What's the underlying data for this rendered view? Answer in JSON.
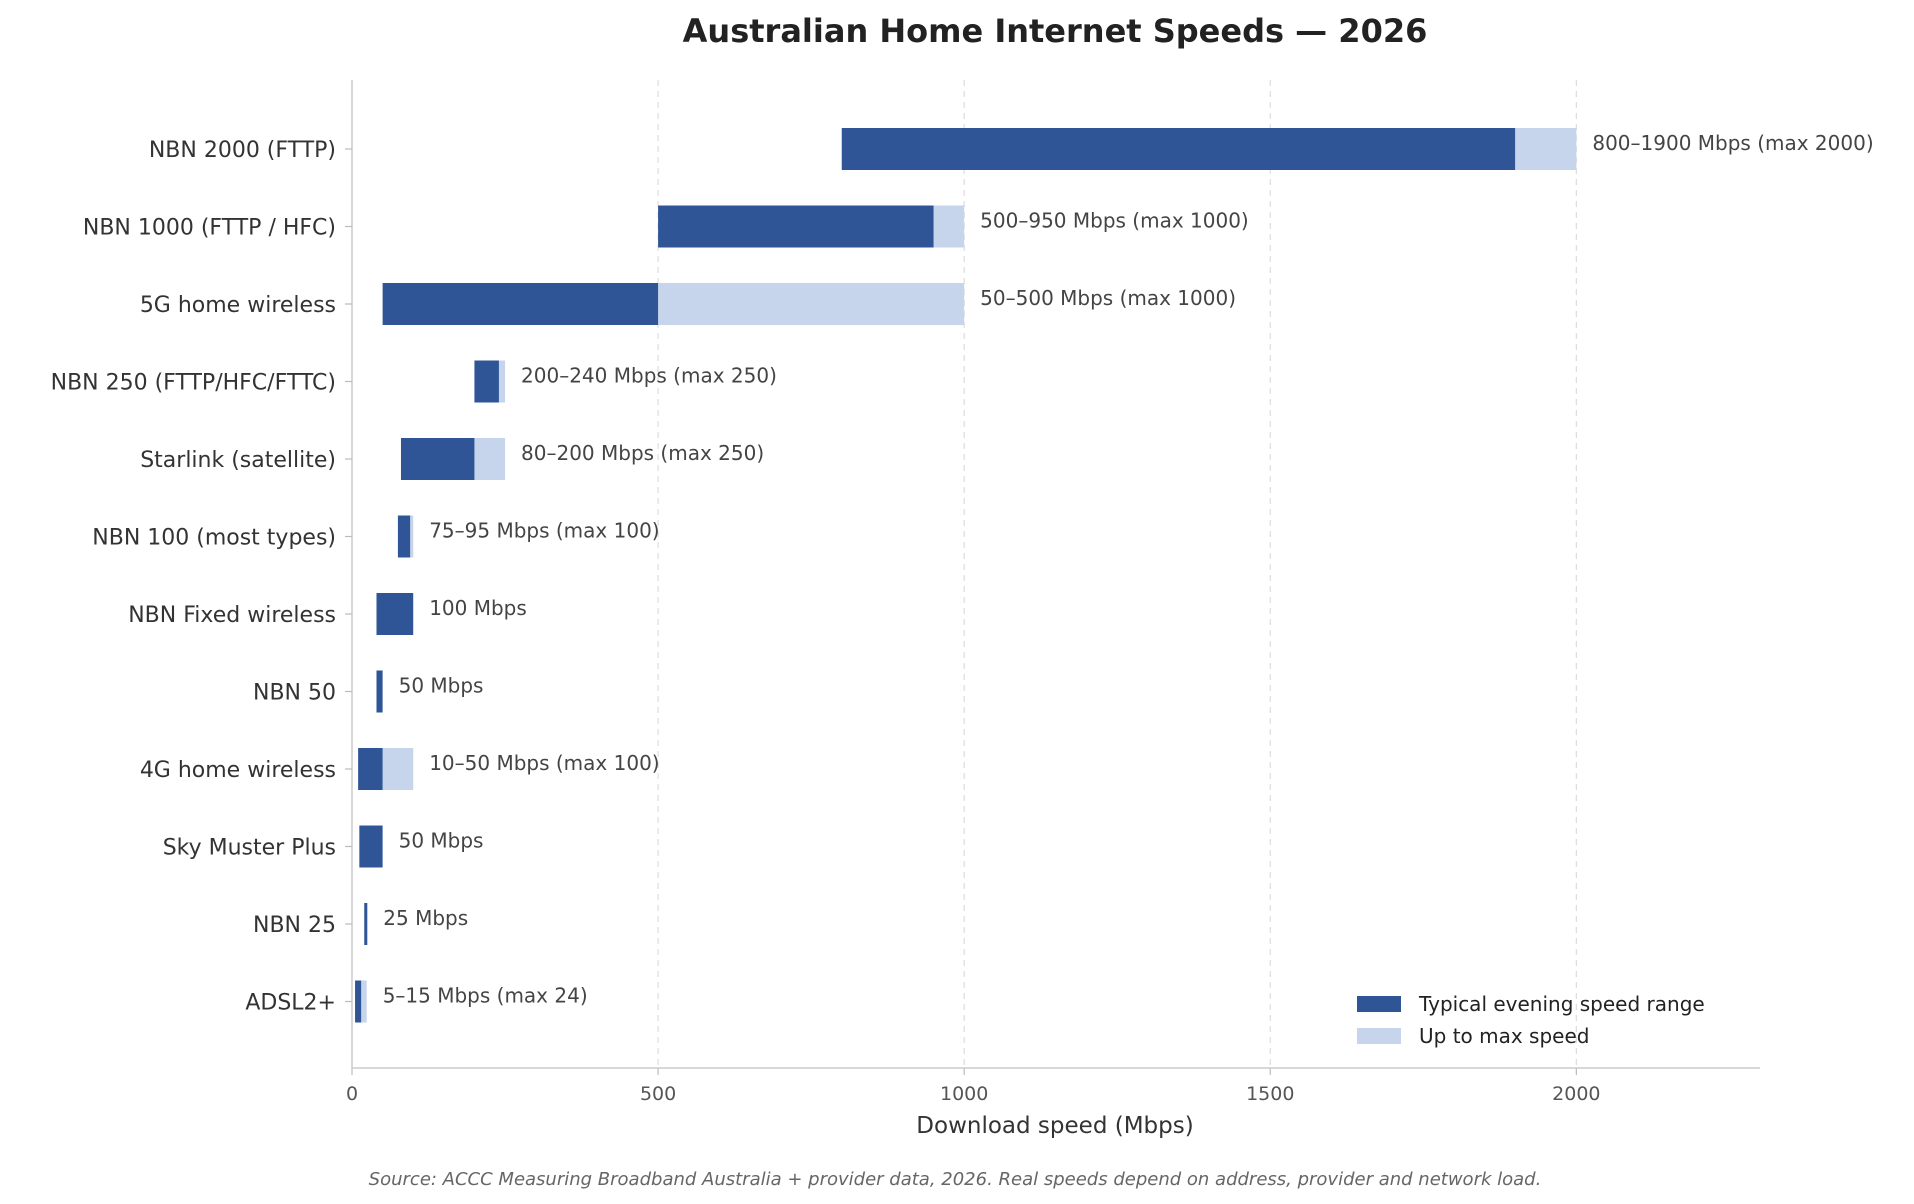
{
  "chart_data": {
    "type": "bar",
    "orientation": "horizontal",
    "title": "Australian Home Internet Speeds — 2026",
    "xlabel": "Download speed (Mbps)",
    "ylabel": "",
    "xlim": [
      0,
      2300
    ],
    "xticks": [
      0,
      500,
      1000,
      1500,
      2000
    ],
    "grid": "x-dashed",
    "legend_position": "bottom-right",
    "colors": {
      "typical": "#2f5597",
      "max": "#c6d5ec"
    },
    "legend": [
      {
        "key": "typical",
        "label": "Typical evening speed range"
      },
      {
        "key": "max",
        "label": "Up to max speed"
      }
    ],
    "categories": [
      "NBN 2000 (FTTP)",
      "NBN 1000 (FTTP / HFC)",
      "5G home wireless",
      "NBN 250 (FTTP/HFC/FTTC)",
      "Starlink (satellite)",
      "NBN 100 (most types)",
      "NBN Fixed wireless",
      "NBN 50",
      "4G home wireless",
      "Sky Muster Plus",
      "NBN 25",
      "ADSL2+"
    ],
    "series": [
      {
        "name": "Typical evening speed range",
        "ranges": [
          [
            800,
            1900
          ],
          [
            500,
            950
          ],
          [
            50,
            500
          ],
          [
            200,
            240
          ],
          [
            80,
            200
          ],
          [
            75,
            95
          ],
          [
            40,
            100
          ],
          [
            40,
            50
          ],
          [
            10,
            50
          ],
          [
            12,
            50
          ],
          [
            20,
            25
          ],
          [
            5,
            15
          ]
        ]
      },
      {
        "name": "Up to max speed",
        "ranges": [
          [
            1900,
            2000
          ],
          [
            950,
            1000
          ],
          [
            500,
            1000
          ],
          [
            240,
            250
          ],
          [
            200,
            250
          ],
          [
            95,
            100
          ],
          null,
          null,
          [
            50,
            100
          ],
          null,
          null,
          [
            15,
            24
          ]
        ]
      }
    ],
    "annotations": [
      "800–1900 Mbps (max 2000)",
      "500–950 Mbps (max 1000)",
      "50–500 Mbps (max 1000)",
      "200–240 Mbps (max 250)",
      "80–200 Mbps (max 250)",
      "75–95 Mbps (max 100)",
      "100 Mbps",
      "50 Mbps",
      "10–50 Mbps (max 100)",
      "50 Mbps",
      "25 Mbps",
      "5–15 Mbps (max 24)"
    ],
    "source_note": "Source: ACCC Measuring Broadband Australia + provider data, 2026.  Real speeds depend on address, provider and network load."
  }
}
